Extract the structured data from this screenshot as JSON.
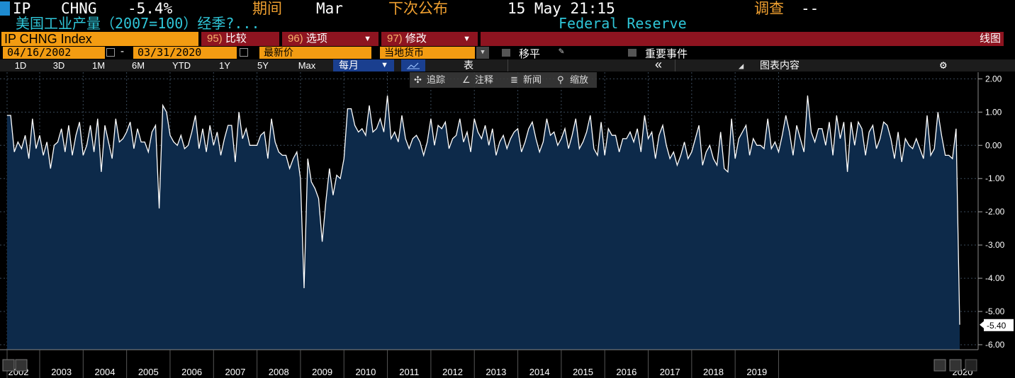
{
  "header": {
    "ticker": "IP",
    "field": "CHNG",
    "value": "-5.4%",
    "period_label": "期间",
    "period_value": "Mar",
    "next_label": "下次公布",
    "next_value": "15 May 21:15",
    "survey_label": "调查",
    "survey_value": "--",
    "description": "美国工业产量（2007=100）经季?...",
    "source": "Federal Reserve"
  },
  "toolbar": {
    "security": "IP CHNG Index",
    "compare_num": "95)",
    "compare_label": "比较",
    "options_num": "96)",
    "options_label": "选项",
    "edit_num": "97)",
    "edit_label": "修改",
    "chart_type": "线图",
    "start_date": "04/16/2002",
    "end_date": "03/31/2020",
    "price_field": "最新价",
    "currency": "当地货币",
    "shift_label": "移平",
    "events_label": "重要事件",
    "ranges": [
      "1D",
      "3D",
      "1M",
      "6M",
      "YTD",
      "1Y",
      "5Y",
      "Max"
    ],
    "frequency": "每月",
    "table_label": "表",
    "collapse": "«",
    "chart_content": "图表内容",
    "tools": [
      "追踪",
      "注释",
      "新闻",
      "缩放"
    ]
  },
  "colors": {
    "accent_orange": "#f39c12",
    "header_orange": "#f0a030",
    "header_cyan": "#2fc6d8",
    "area_fill": "#0d2a4a",
    "line": "#ffffff",
    "toolbar_red": "#8e1420",
    "pill_blue": "#1a3f8f"
  },
  "icons": {
    "calendar": "calendar-icon",
    "dropdown": "dropdown-icon",
    "pen": "pen-icon",
    "gear": "gear-icon",
    "chart_content": "chart-content-icon",
    "line_chart": "line-chart-icon",
    "tracker": "tracker-icon",
    "annotate": "annotate-icon",
    "news": "news-icon",
    "zoom": "zoom-icon",
    "nav_prev": "prev-icon",
    "nav_next": "next-icon"
  },
  "chart_data": {
    "type": "area",
    "series": [
      {
        "x_start": "2002-04",
        "frequency": "monthly",
        "values": [
          0.9,
          0.9,
          -0.2,
          0.1,
          -0.1,
          0.3,
          -0.4,
          0.8,
          -0.1,
          0.3,
          -0.3,
          0.1,
          -0.7,
          0.0,
          0.1,
          0.5,
          -0.2,
          0.6,
          -0.3,
          0.3,
          0.7,
          -0.3,
          0.0,
          0.6,
          -0.2,
          0.8,
          -0.8,
          0.6,
          0.1,
          -0.4,
          0.8,
          0.1,
          0.2,
          0.4,
          0.7,
          -0.1,
          0.5,
          0.1,
          0.1,
          -0.2,
          0.4,
          0.6,
          -1.9,
          1.2,
          1.0,
          0.3,
          0.1,
          0.0,
          0.3,
          -0.1,
          0.0,
          0.4,
          0.9,
          -0.1,
          0.5,
          -0.2,
          0.6,
          0.0,
          0.4,
          -0.3,
          0.2,
          0.6,
          0.6,
          -0.5,
          1.0,
          0.2,
          0.5,
          0.0,
          0.0,
          0.0,
          0.3,
          0.4,
          -0.4,
          0.8,
          0.1,
          -0.2,
          -0.3,
          -0.3,
          -0.7,
          -0.4,
          -0.2,
          -1.0,
          -4.3,
          -0.4,
          -1.1,
          -1.3,
          -1.6,
          -2.9,
          -1.7,
          -0.7,
          -1.5,
          -0.9,
          -1.0,
          -0.4,
          1.1,
          1.1,
          0.6,
          0.4,
          0.5,
          0.3,
          1.2,
          0.4,
          0.5,
          0.8,
          0.4,
          1.5,
          0.2,
          0.4,
          0.1,
          0.9,
          0.2,
          -0.1,
          0.2,
          0.3,
          0.1,
          -0.3,
          0.1,
          0.8,
          0.0,
          0.6,
          0.5,
          0.7,
          -0.1,
          0.2,
          0.3,
          0.8,
          0.1,
          0.4,
          -0.2,
          0.8,
          0.4,
          0.2,
          0.6,
          0.0,
          0.5,
          -0.3,
          0.1,
          0.3,
          -0.1,
          0.2,
          0.4,
          0.5,
          -0.2,
          0.1,
          0.5,
          0.7,
          0.2,
          -0.2,
          0.1,
          0.8,
          0.3,
          0.4,
          0.0,
          0.2,
          0.5,
          -0.1,
          0.3,
          0.8,
          -0.1,
          0.1,
          0.4,
          0.9,
          -0.1,
          -0.3,
          0.7,
          -0.3,
          0.5,
          0.3,
          0.3,
          -0.2,
          0.2,
          0.2,
          0.4,
          0.1,
          0.5,
          -0.2,
          0.9,
          0.2,
          0.4,
          -0.4,
          0.3,
          0.6,
          0.0,
          -0.4,
          -0.2,
          -0.6,
          -0.3,
          0.1,
          -0.4,
          -0.2,
          0.2,
          0.6,
          -0.6,
          -0.2,
          0.0,
          -0.4,
          -0.6,
          0.4,
          -0.7,
          -0.8,
          0.8,
          -0.4,
          0.2,
          0.4,
          0.6,
          -0.3,
          0.2,
          0.0,
          0.0,
          -0.1,
          0.8,
          -0.1,
          0.1,
          -0.2,
          0.3,
          0.9,
          0.4,
          -0.3,
          0.6,
          0.2,
          -0.2,
          1.5,
          0.4,
          0.1,
          0.5,
          0.5,
          0.0,
          0.7,
          -0.3,
          0.9,
          0.2,
          0.7,
          -0.8,
          0.7,
          0.0,
          0.7,
          0.5,
          -0.3,
          0.4,
          0.6,
          -0.1,
          0.2,
          0.7,
          0.6,
          0.2,
          -0.4,
          0.4,
          -0.5,
          0.2,
          0.0,
          -0.1,
          0.2,
          -0.1,
          -0.4,
          0.9,
          -0.3,
          -0.1,
          1.0,
          0.3,
          -0.3,
          -0.3,
          -0.4,
          0.5,
          -5.4
        ]
      }
    ],
    "x_ticks": [
      "2002",
      "2003",
      "2004",
      "2005",
      "2006",
      "2007",
      "2008",
      "2009",
      "2010",
      "2011",
      "2012",
      "2013",
      "2014",
      "2015",
      "2016",
      "2017",
      "2018",
      "2019",
      "2020"
    ],
    "y_ticks": [
      "2.00",
      "1.00",
      "0.00",
      "-1.00",
      "-2.00",
      "-3.00",
      "-4.00",
      "-5.00",
      "-6.00"
    ],
    "last_value_label": "-5.40",
    "ylim": [
      -6.15,
      2.2
    ],
    "grid": true
  }
}
